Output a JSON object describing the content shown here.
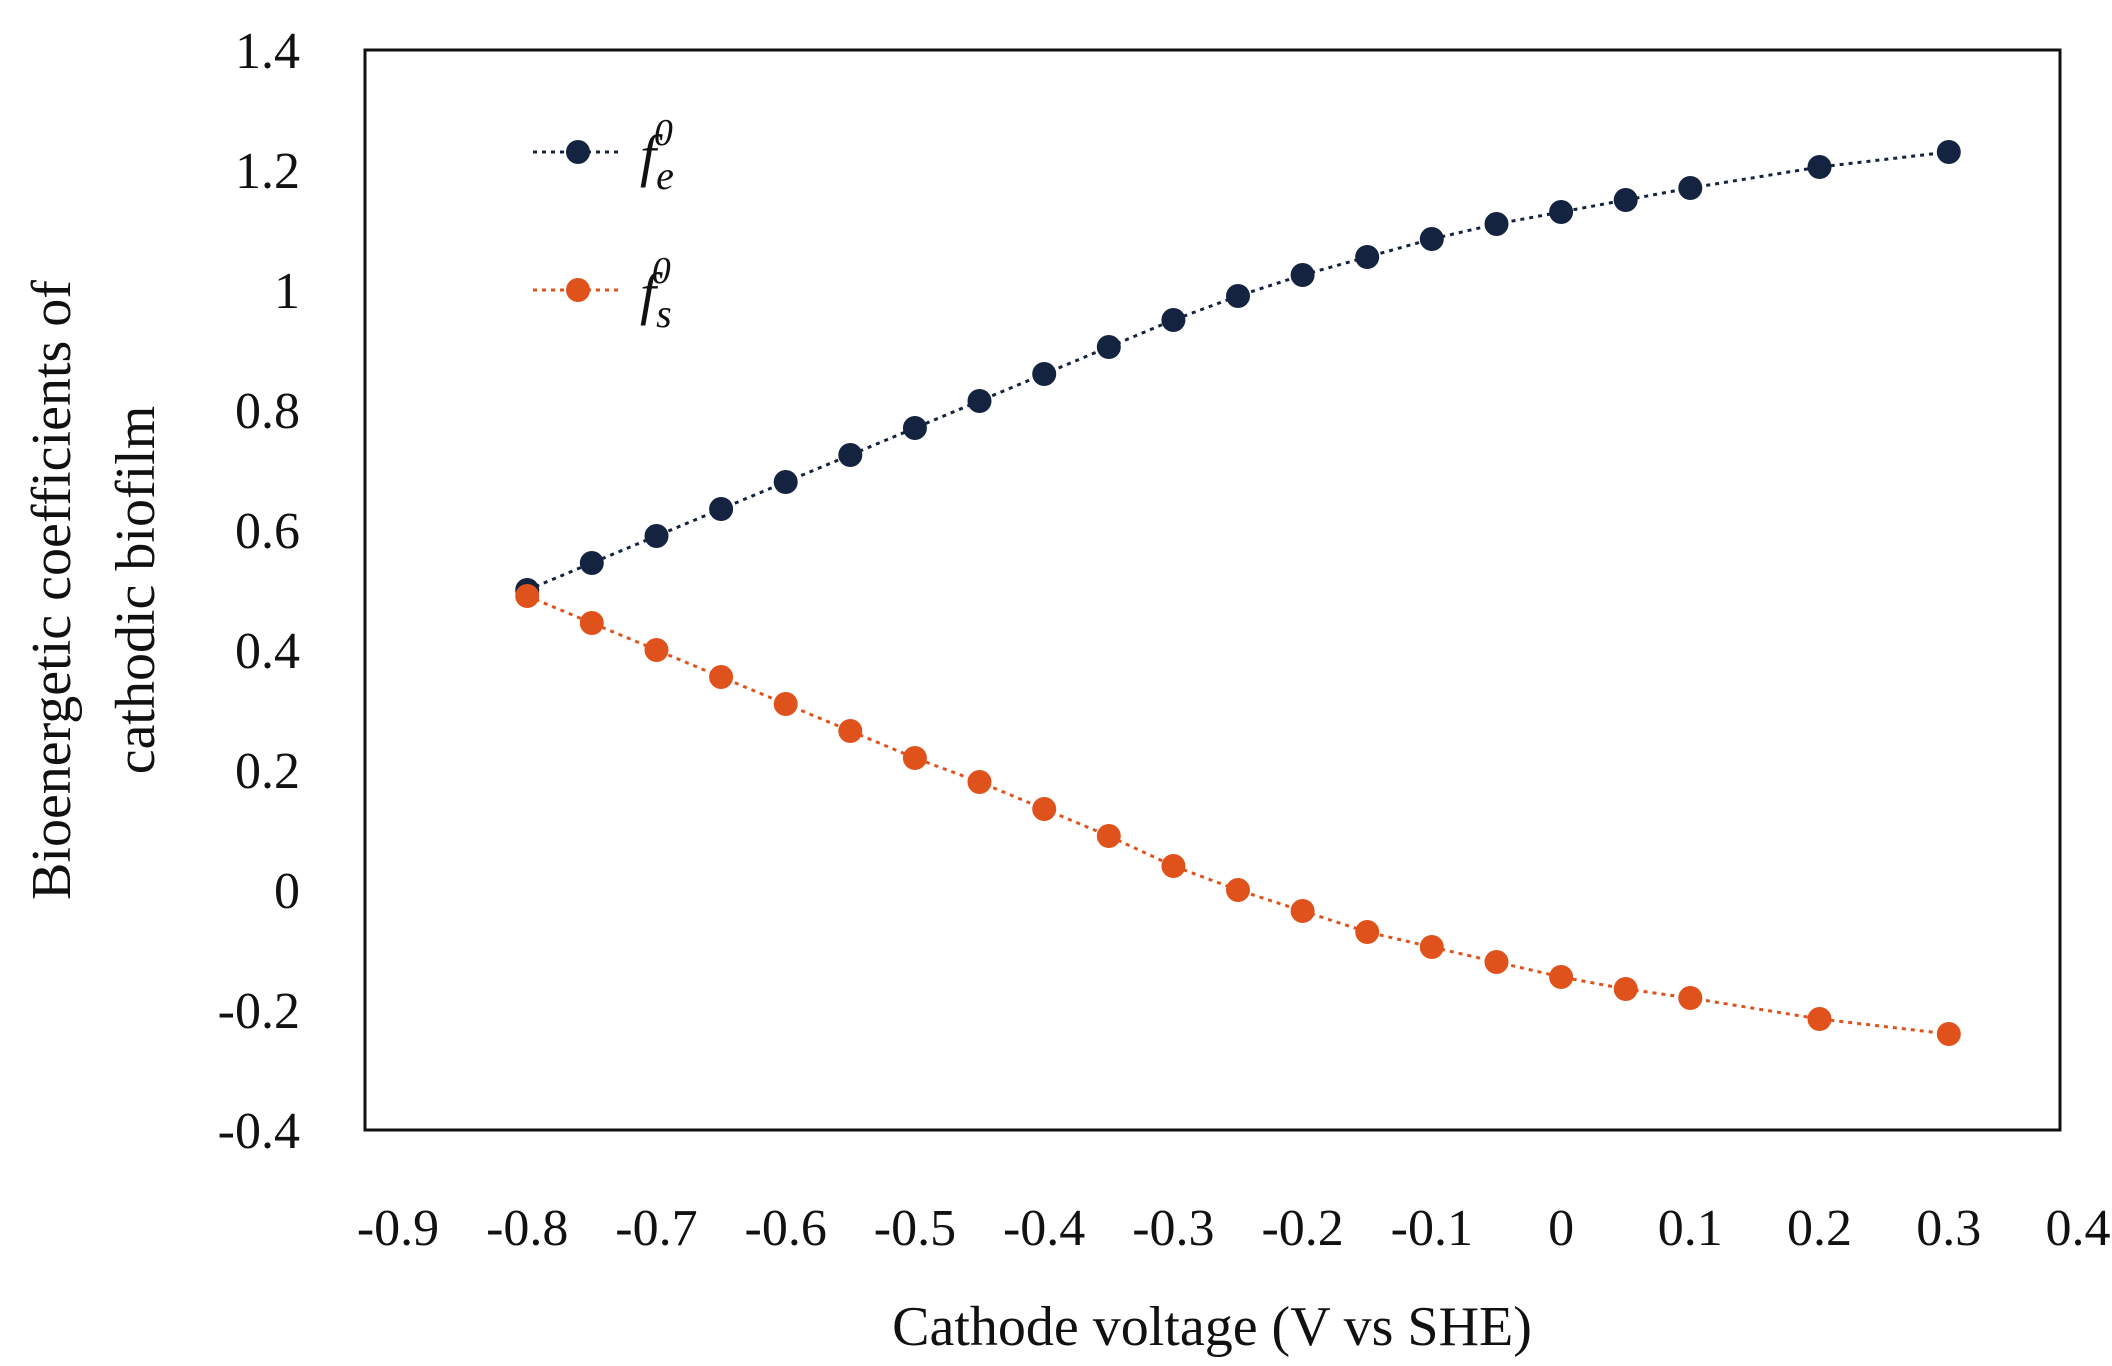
{
  "chart_data": {
    "type": "line",
    "title": "",
    "xlabel": "Cathode voltage (V vs SHE)",
    "ylabel_line1": "Bioenergetic coefficients of",
    "ylabel_line2": "cathodic biofilm",
    "xlim": [
      -0.9,
      0.4
    ],
    "ylim": [
      -0.4,
      1.4
    ],
    "x_ticks": [
      -0.9,
      -0.8,
      -0.7,
      -0.6,
      -0.5,
      -0.4,
      -0.3,
      -0.2,
      -0.1,
      0,
      0.1,
      0.2,
      0.3,
      0.4
    ],
    "x_tick_labels": [
      "-0.9",
      "-0.8",
      "-0.7",
      "-0.6",
      "-0.5",
      "-0.4",
      "-0.3",
      "-0.2",
      "-0.1",
      "0",
      "0.1",
      "0.2",
      "0.3",
      "0.4"
    ],
    "y_ticks": [
      -0.4,
      -0.2,
      0,
      0.2,
      0.4,
      0.6,
      0.8,
      1,
      1.2,
      1.4
    ],
    "y_tick_labels": [
      "-0.4",
      "-0.2",
      "0",
      "0.2",
      "0.4",
      "0.6",
      "0.8",
      "1",
      "1.2",
      "1.4"
    ],
    "grid": false,
    "legend_position": "top-left",
    "series": [
      {
        "name": "fe0",
        "legend_base": "f",
        "legend_sub": "e",
        "legend_sup": "0",
        "color": "#14233f",
        "x": [
          -0.8,
          -0.75,
          -0.7,
          -0.65,
          -0.6,
          -0.55,
          -0.5,
          -0.45,
          -0.4,
          -0.35,
          -0.3,
          -0.25,
          -0.2,
          -0.15,
          -0.1,
          -0.05,
          0,
          0.05,
          0.1,
          0.2,
          0.3
        ],
        "values": [
          0.5,
          0.545,
          0.59,
          0.635,
          0.68,
          0.725,
          0.77,
          0.815,
          0.86,
          0.905,
          0.95,
          0.99,
          1.025,
          1.055,
          1.085,
          1.11,
          1.13,
          1.15,
          1.17,
          1.205,
          1.23
        ]
      },
      {
        "name": "fs0",
        "legend_base": "f",
        "legend_sub": "s",
        "legend_sup": "0",
        "color": "#e0521c",
        "x": [
          -0.8,
          -0.75,
          -0.7,
          -0.65,
          -0.6,
          -0.55,
          -0.5,
          -0.45,
          -0.4,
          -0.35,
          -0.3,
          -0.25,
          -0.2,
          -0.15,
          -0.1,
          -0.05,
          0,
          0.05,
          0.1,
          0.2,
          0.3
        ],
        "values": [
          0.49,
          0.445,
          0.4,
          0.355,
          0.31,
          0.265,
          0.22,
          0.18,
          0.135,
          0.09,
          0.04,
          0.0,
          -0.035,
          -0.07,
          -0.095,
          -0.12,
          -0.145,
          -0.165,
          -0.18,
          -0.215,
          -0.24
        ]
      }
    ]
  }
}
